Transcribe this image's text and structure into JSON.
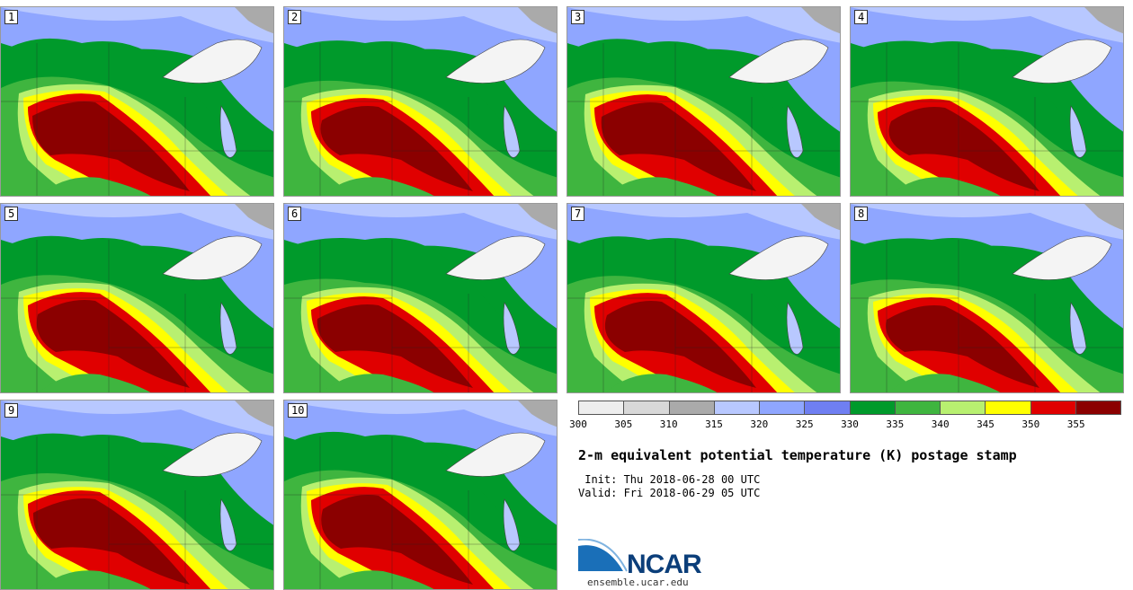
{
  "panels": [
    {
      "label": "1"
    },
    {
      "label": "2"
    },
    {
      "label": "3"
    },
    {
      "label": "4"
    },
    {
      "label": "5"
    },
    {
      "label": "6"
    },
    {
      "label": "7"
    },
    {
      "label": "8"
    },
    {
      "label": "9"
    },
    {
      "label": "10"
    }
  ],
  "colorbar": {
    "colors": [
      "#eeeeee",
      "#d8d8d8",
      "#aaaaaa",
      "#b8c8ff",
      "#8fa6ff",
      "#6f7ff2",
      "#009a2b",
      "#3fb53f",
      "#b8f070",
      "#ffff00",
      "#e00000",
      "#8b0000"
    ],
    "ticks": [
      "300",
      "305",
      "310",
      "315",
      "320",
      "325",
      "330",
      "335",
      "340",
      "345",
      "350",
      "355"
    ]
  },
  "title": "2-m equivalent potential temperature (K) postage stamp",
  "init": " Init: Thu 2018-06-28 00 UTC",
  "valid": "Valid: Fri 2018-06-29 05 UTC",
  "logo": {
    "text": "NCAR",
    "url": "ensemble.ucar.edu"
  }
}
